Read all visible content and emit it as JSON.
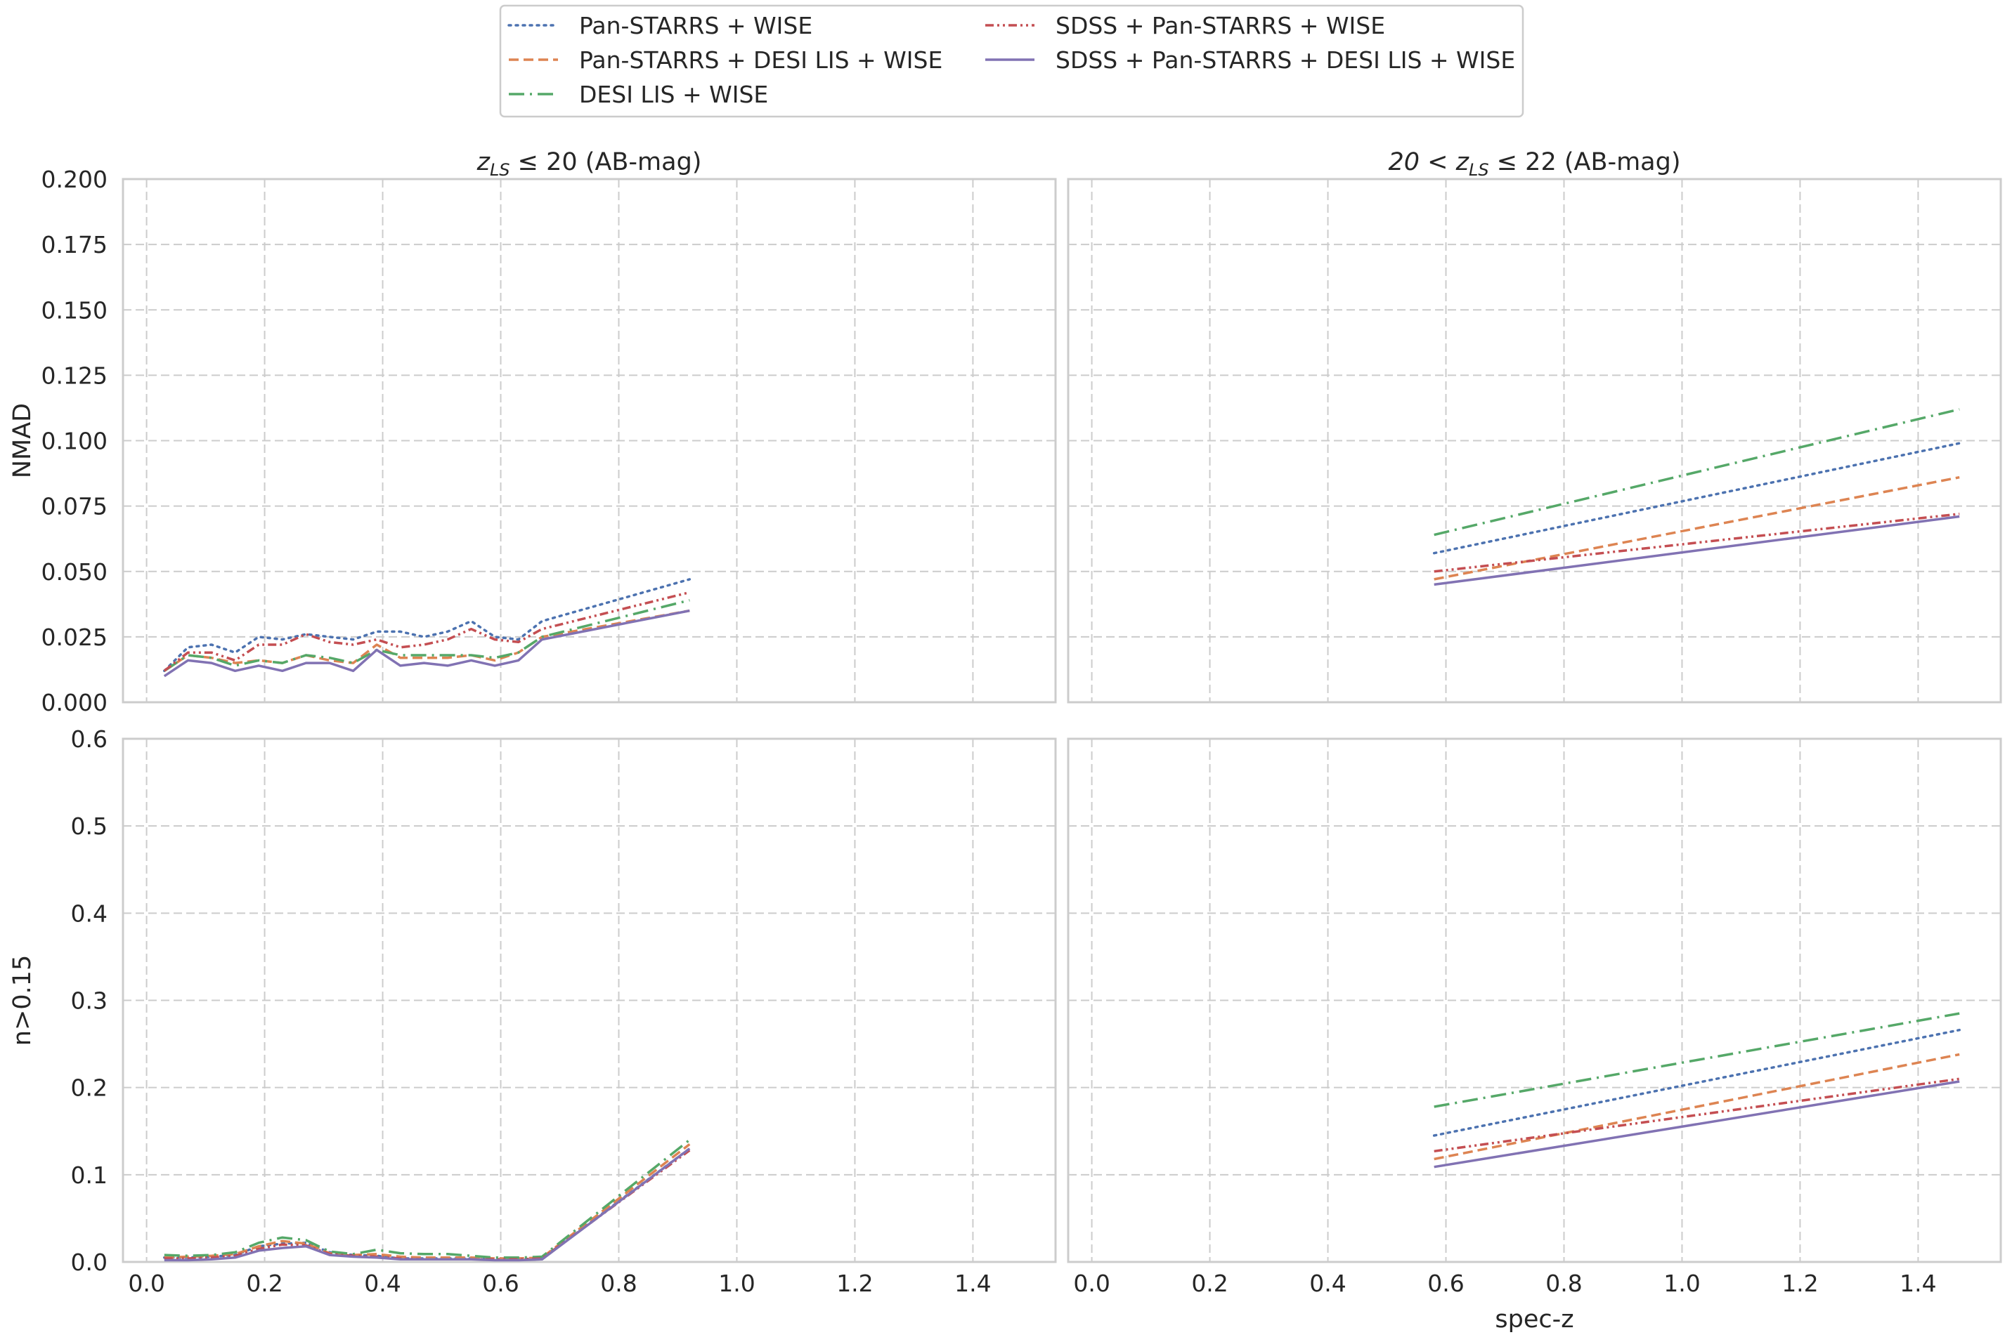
{
  "chart_data": {
    "type": "line",
    "legend": {
      "placement": "top-center",
      "entries": [
        {
          "label": "Pan-STARRS + WISE",
          "color": "#4c72b0",
          "style": "dotted"
        },
        {
          "label": "Pan-STARRS + DESI LIS + WISE",
          "color": "#dd8452",
          "style": "dashed"
        },
        {
          "label": "DESI LIS + WISE",
          "color": "#55a868",
          "style": "dashdot"
        },
        {
          "label": "SDSS + Pan-STARRS + WISE",
          "color": "#c44e52",
          "style": "dashdotdot"
        },
        {
          "label": "SDSS + Pan-STARRS + DESI LIS + WISE",
          "color": "#8172b3",
          "style": "solid"
        }
      ]
    },
    "xlabel": "spec-z",
    "xlim": [
      -0.04,
      1.54
    ],
    "xticks": [
      "0.0",
      "0.2",
      "0.4",
      "0.6",
      "0.8",
      "1.0",
      "1.2",
      "1.4"
    ],
    "grid": true,
    "columns": [
      {
        "title": "$z_{LS} \\leq 20$ (AB-mag)",
        "title_parts": [
          "z",
          "LS",
          "≤ 20 (AB-mag)"
        ]
      },
      {
        "title": "$20 < z_{LS} \\leq 22$ (AB-mag)",
        "title_parts": [
          "20 < z",
          "LS",
          "≤ 22 (AB-mag)"
        ]
      }
    ],
    "rows": [
      {
        "ylabel": "NMAD",
        "ylim": [
          0,
          0.2
        ],
        "yticks": [
          "0.000",
          "0.025",
          "0.050",
          "0.075",
          "0.100",
          "0.125",
          "0.150",
          "0.175",
          "0.200"
        ]
      },
      {
        "ylabel": "n>0.15",
        "ylim": [
          0,
          0.6
        ],
        "yticks": [
          "0.0",
          "0.1",
          "0.2",
          "0.3",
          "0.4",
          "0.5",
          "0.6"
        ]
      }
    ],
    "panels": [
      {
        "row": 0,
        "col": 0,
        "x": [
          0.03,
          0.07,
          0.11,
          0.15,
          0.19,
          0.23,
          0.27,
          0.31,
          0.35,
          0.39,
          0.43,
          0.47,
          0.51,
          0.55,
          0.59,
          0.63,
          0.67,
          0.92
        ],
        "series": [
          {
            "name": "Pan-STARRS + WISE",
            "values": [
              0.012,
              0.021,
              0.022,
              0.019,
              0.025,
              0.024,
              0.026,
              0.025,
              0.024,
              0.027,
              0.027,
              0.025,
              0.027,
              0.031,
              0.025,
              0.024,
              0.031,
              0.047
            ]
          },
          {
            "name": "Pan-STARRS + DESI LIS + WISE",
            "values": [
              0.012,
              0.018,
              0.017,
              0.015,
              0.016,
              0.015,
              0.018,
              0.016,
              0.015,
              0.022,
              0.017,
              0.017,
              0.017,
              0.018,
              0.016,
              0.019,
              0.025,
              0.035
            ]
          },
          {
            "name": "DESI LIS + WISE",
            "values": [
              0.012,
              0.018,
              0.017,
              0.014,
              0.016,
              0.015,
              0.018,
              0.017,
              0.015,
              0.02,
              0.018,
              0.018,
              0.018,
              0.018,
              0.017,
              0.019,
              0.025,
              0.039
            ]
          },
          {
            "name": "SDSS + Pan-STARRS + WISE",
            "values": [
              0.012,
              0.019,
              0.019,
              0.016,
              0.022,
              0.022,
              0.026,
              0.023,
              0.022,
              0.024,
              0.021,
              0.022,
              0.024,
              0.028,
              0.024,
              0.023,
              0.028,
              0.042
            ]
          },
          {
            "name": "SDSS + Pan-STARRS + DESI LIS + WISE",
            "values": [
              0.01,
              0.016,
              0.015,
              0.012,
              0.014,
              0.012,
              0.015,
              0.015,
              0.012,
              0.02,
              0.014,
              0.015,
              0.014,
              0.016,
              0.014,
              0.016,
              0.024,
              0.035
            ]
          }
        ]
      },
      {
        "row": 0,
        "col": 1,
        "x": [
          0.58,
          1.47
        ],
        "series": [
          {
            "name": "Pan-STARRS + WISE",
            "values": [
              0.057,
              0.099
            ]
          },
          {
            "name": "Pan-STARRS + DESI LIS + WISE",
            "values": [
              0.047,
              0.086
            ]
          },
          {
            "name": "DESI LIS + WISE",
            "values": [
              0.064,
              0.112
            ]
          },
          {
            "name": "SDSS + Pan-STARRS + WISE",
            "values": [
              0.05,
              0.072
            ]
          },
          {
            "name": "SDSS + Pan-STARRS + DESI LIS + WISE",
            "values": [
              0.045,
              0.071
            ]
          }
        ]
      },
      {
        "row": 1,
        "col": 0,
        "x": [
          0.03,
          0.07,
          0.11,
          0.15,
          0.19,
          0.23,
          0.27,
          0.31,
          0.35,
          0.39,
          0.43,
          0.47,
          0.51,
          0.55,
          0.59,
          0.63,
          0.67,
          0.92
        ],
        "series": [
          {
            "name": "Pan-STARRS + WISE",
            "values": [
              0.005,
              0.005,
              0.006,
              0.008,
              0.018,
              0.021,
              0.022,
              0.011,
              0.008,
              0.007,
              0.004,
              0.004,
              0.004,
              0.004,
              0.003,
              0.003,
              0.004,
              0.13
            ]
          },
          {
            "name": "Pan-STARRS + DESI LIS + WISE",
            "values": [
              0.005,
              0.006,
              0.007,
              0.009,
              0.018,
              0.024,
              0.021,
              0.01,
              0.008,
              0.009,
              0.006,
              0.005,
              0.005,
              0.005,
              0.004,
              0.004,
              0.005,
              0.135
            ]
          },
          {
            "name": "DESI LIS + WISE",
            "values": [
              0.008,
              0.007,
              0.008,
              0.011,
              0.022,
              0.028,
              0.025,
              0.012,
              0.009,
              0.014,
              0.01,
              0.009,
              0.009,
              0.007,
              0.005,
              0.005,
              0.006,
              0.14
            ]
          },
          {
            "name": "SDSS + Pan-STARRS + WISE",
            "values": [
              0.004,
              0.004,
              0.005,
              0.007,
              0.015,
              0.02,
              0.019,
              0.009,
              0.007,
              0.006,
              0.004,
              0.003,
              0.003,
              0.003,
              0.003,
              0.003,
              0.004,
              0.128
            ]
          },
          {
            "name": "SDSS + Pan-STARRS + DESI LIS + WISE",
            "values": [
              0.002,
              0.002,
              0.003,
              0.005,
              0.013,
              0.016,
              0.018,
              0.008,
              0.006,
              0.005,
              0.003,
              0.003,
              0.003,
              0.003,
              0.002,
              0.002,
              0.003,
              0.13
            ]
          }
        ]
      },
      {
        "row": 1,
        "col": 1,
        "x": [
          0.58,
          1.47
        ],
        "series": [
          {
            "name": "Pan-STARRS + WISE",
            "values": [
              0.145,
              0.266
            ]
          },
          {
            "name": "Pan-STARRS + DESI LIS + WISE",
            "values": [
              0.118,
              0.238
            ]
          },
          {
            "name": "DESI LIS + WISE",
            "values": [
              0.178,
              0.285
            ]
          },
          {
            "name": "SDSS + Pan-STARRS + WISE",
            "values": [
              0.127,
              0.21
            ]
          },
          {
            "name": "SDSS + Pan-STARRS + DESI LIS + WISE",
            "values": [
              0.109,
              0.207
            ]
          }
        ]
      }
    ]
  }
}
